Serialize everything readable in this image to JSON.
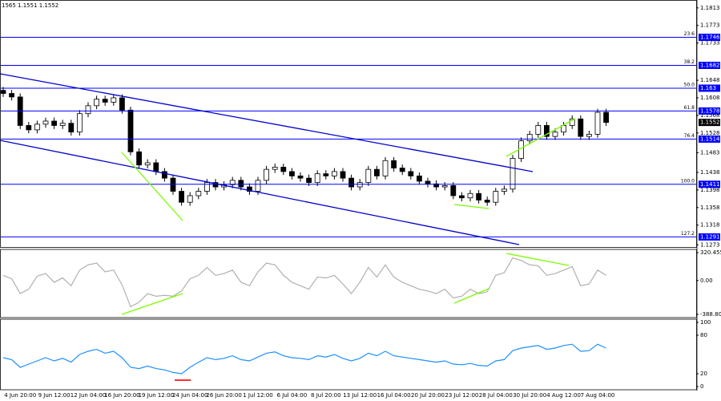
{
  "header": "1565 1.1551 1.1552",
  "chart_data": [
    {
      "type": "candlestick",
      "categories": [
        null,
        null,
        "4 Jun 20:00",
        null,
        null,
        null,
        "9 Jun 12:00",
        null,
        null,
        null,
        "12 Jun 04:00",
        null,
        null,
        null,
        "16 Jun 20:00",
        null,
        null,
        null,
        "19 Jun 12:00",
        null,
        null,
        null,
        "24 Jun 04:00",
        null,
        null,
        null,
        "26 Jun 20:00",
        null,
        null,
        null,
        "1 Jul 12:00",
        null,
        null,
        null,
        "6 Jul 04:00",
        null,
        null,
        null,
        "8 Jul 20:00",
        null,
        null,
        null,
        "13 Jul 12:00",
        null,
        null,
        null,
        "16 Jul 04:00",
        null,
        null,
        null,
        "20 Jul 20:00",
        null,
        null,
        null,
        "23 Jul 12:00",
        null,
        null,
        null,
        "28 Jul 04:00",
        null,
        null,
        null,
        "30 Jul 20:00",
        null,
        null,
        null,
        "4 Aug 12:00",
        null,
        null,
        null,
        "7 Aug 04:00",
        null
      ],
      "open": [
        1.1625,
        1.1618,
        1.161,
        1.1545,
        1.1535,
        1.1548,
        1.1555,
        1.1545,
        1.155,
        1.153,
        1.1572,
        1.159,
        1.1605,
        1.1598,
        1.1608,
        1.158,
        1.1485,
        1.1455,
        1.146,
        1.144,
        1.1425,
        1.1395,
        1.137,
        1.1385,
        1.1395,
        1.1415,
        1.1405,
        1.141,
        1.142,
        1.1405,
        1.1395,
        1.142,
        1.1445,
        1.145,
        1.144,
        1.143,
        1.1425,
        1.1415,
        1.1435,
        1.143,
        1.144,
        1.1425,
        1.1405,
        1.1415,
        1.1445,
        1.143,
        1.1465,
        1.1448,
        1.144,
        1.143,
        1.1418,
        1.1412,
        1.1405,
        1.1408,
        1.1385,
        1.138,
        1.139,
        1.1375,
        1.137,
        1.1395,
        1.14,
        1.147,
        1.151,
        1.1525,
        1.1545,
        1.152,
        1.153,
        1.1545,
        1.156,
        1.152,
        1.1525,
        1.1575
      ],
      "high": [
        1.1633,
        1.1626,
        1.1618,
        1.1553,
        1.1556,
        1.1563,
        1.1563,
        1.1558,
        1.1558,
        1.158,
        1.1598,
        1.1613,
        1.1613,
        1.1616,
        1.1616,
        1.1588,
        1.1493,
        1.1468,
        1.1468,
        1.1448,
        1.1433,
        1.1403,
        1.1393,
        1.1403,
        1.1423,
        1.1423,
        1.1418,
        1.1428,
        1.1428,
        1.1413,
        1.1428,
        1.1453,
        1.1458,
        1.1458,
        1.1448,
        1.1438,
        1.1433,
        1.1443,
        1.1443,
        1.1448,
        1.1448,
        1.1433,
        1.1423,
        1.1453,
        1.1453,
        1.1473,
        1.1473,
        1.1456,
        1.1448,
        1.1438,
        1.1426,
        1.142,
        1.1416,
        1.1416,
        1.1393,
        1.1398,
        1.1398,
        1.1383,
        1.1403,
        1.1408,
        1.1478,
        1.1518,
        1.1533,
        1.1553,
        1.1553,
        1.1538,
        1.1553,
        1.1568,
        1.1568,
        1.1533,
        1.1583,
        1.1583
      ],
      "low": [
        1.161,
        1.1602,
        1.1537,
        1.1527,
        1.1527,
        1.154,
        1.1537,
        1.1537,
        1.1522,
        1.1522,
        1.1564,
        1.1582,
        1.159,
        1.159,
        1.1572,
        1.1477,
        1.1447,
        1.1447,
        1.1432,
        1.1417,
        1.1387,
        1.1362,
        1.1362,
        1.1377,
        1.1387,
        1.1397,
        1.1397,
        1.1402,
        1.1397,
        1.1387,
        1.1387,
        1.1412,
        1.1437,
        1.1432,
        1.1422,
        1.1417,
        1.1407,
        1.1407,
        1.1422,
        1.1422,
        1.1417,
        1.1397,
        1.1397,
        1.1407,
        1.1422,
        1.1422,
        1.144,
        1.1432,
        1.1422,
        1.141,
        1.1404,
        1.1397,
        1.1397,
        1.1377,
        1.1372,
        1.1372,
        1.1367,
        1.1362,
        1.1362,
        1.1387,
        1.1392,
        1.1462,
        1.1502,
        1.1517,
        1.1512,
        1.1512,
        1.1522,
        1.1537,
        1.1512,
        1.1512,
        1.1517,
        1.1544
      ],
      "close": [
        1.1618,
        1.161,
        1.1545,
        1.1535,
        1.1548,
        1.1555,
        1.1545,
        1.155,
        1.153,
        1.1572,
        1.159,
        1.1605,
        1.1598,
        1.1608,
        1.158,
        1.1485,
        1.1455,
        1.146,
        1.144,
        1.1425,
        1.1395,
        1.137,
        1.1385,
        1.1395,
        1.1415,
        1.1405,
        1.141,
        1.142,
        1.1405,
        1.1395,
        1.142,
        1.1445,
        1.145,
        1.144,
        1.143,
        1.1425,
        1.1415,
        1.1435,
        1.143,
        1.144,
        1.1425,
        1.1405,
        1.1415,
        1.1445,
        1.143,
        1.1465,
        1.1448,
        1.144,
        1.143,
        1.1418,
        1.1412,
        1.1405,
        1.1408,
        1.1385,
        1.138,
        1.139,
        1.1375,
        1.137,
        1.1395,
        1.14,
        1.147,
        1.151,
        1.1525,
        1.1545,
        1.152,
        1.153,
        1.1545,
        1.156,
        1.152,
        1.1525,
        1.1575,
        1.1552
      ],
      "ylim": [
        1.1268,
        1.1831
      ],
      "yticks": [
        1.1813,
        1.1773,
        1.1733,
        1.1648,
        1.1608,
        1.1568,
        1.1528,
        1.1483,
        1.1438,
        1.1398,
        1.1358,
        1.1318,
        1.1273
      ],
      "levels": [
        {
          "name": "23.6",
          "value": 1.1746
        },
        {
          "name": "38.2",
          "value": 1.1682
        },
        {
          "name": "50.0",
          "value": 1.163
        },
        {
          "name": "61.8",
          "value": 1.1578
        },
        {
          "name": "76.4",
          "value": 1.1514
        },
        {
          "name": "100.0",
          "value": 1.1411
        },
        {
          "name": "127.2",
          "value": 1.1291
        }
      ],
      "level_color": "#0000ff",
      "last_price": 1.1552,
      "grid": true
    },
    {
      "type": "line",
      "color": "#b0b0b0",
      "values": [
        60,
        20,
        -150,
        -100,
        50,
        80,
        -20,
        30,
        -60,
        120,
        180,
        200,
        100,
        120,
        -50,
        -300,
        -250,
        -150,
        -180,
        -170,
        -180,
        -120,
        20,
        60,
        150,
        60,
        80,
        120,
        -20,
        -60,
        100,
        200,
        180,
        60,
        -20,
        -60,
        -100,
        40,
        30,
        60,
        -40,
        -150,
        -20,
        150,
        40,
        180,
        40,
        -20,
        -60,
        -100,
        -120,
        -150,
        -100,
        -200,
        -180,
        -100,
        -150,
        -130,
        60,
        90,
        260,
        230,
        180,
        170,
        60,
        80,
        120,
        160,
        -60,
        -40,
        120,
        60
      ],
      "ylim": [
        -388.803,
        320.4558
      ],
      "yticks": [
        -388.803,
        {
          "value": 0,
          "label": "0.00"
        },
        320.4558
      ]
    },
    {
      "type": "line",
      "color": "#1e90ff",
      "values": [
        45,
        42,
        30,
        35,
        40,
        45,
        40,
        44,
        38,
        50,
        55,
        58,
        52,
        55,
        45,
        30,
        28,
        32,
        28,
        26,
        22,
        20,
        30,
        38,
        45,
        42,
        44,
        48,
        42,
        40,
        46,
        52,
        54,
        48,
        45,
        44,
        42,
        48,
        46,
        50,
        44,
        40,
        44,
        52,
        48,
        55,
        48,
        46,
        44,
        42,
        40,
        38,
        40,
        35,
        34,
        36,
        33,
        32,
        40,
        42,
        56,
        60,
        62,
        64,
        58,
        60,
        64,
        66,
        55,
        56,
        66,
        60
      ],
      "ylim": [
        0,
        100
      ],
      "yticks": [
        0,
        20,
        80,
        100
      ]
    }
  ]
}
